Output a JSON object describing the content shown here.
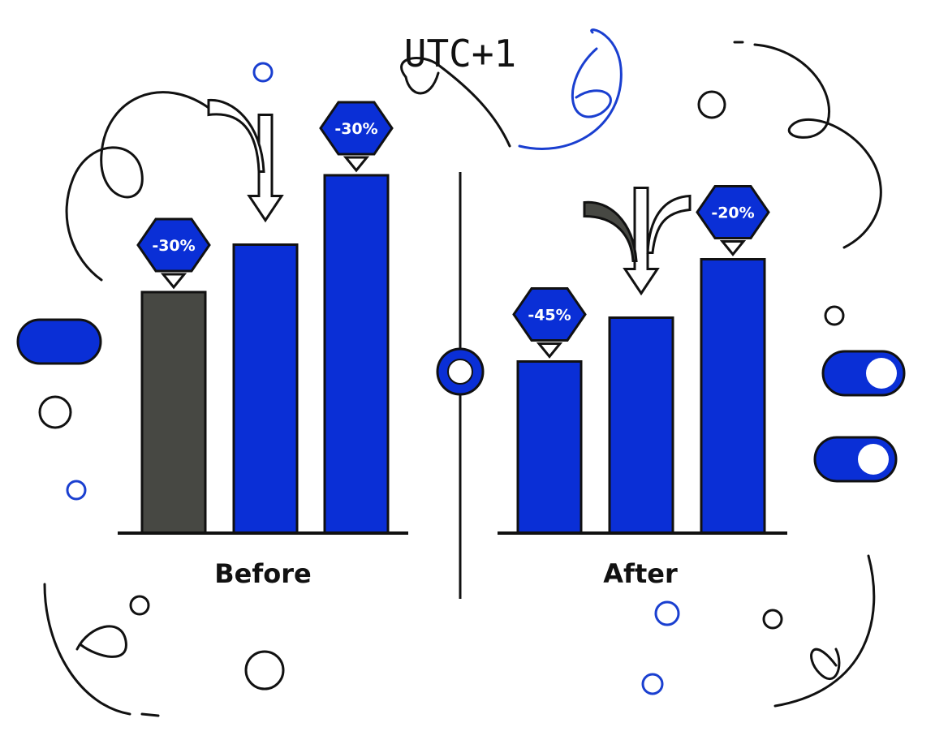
{
  "title": "UTC+1",
  "colors": {
    "blue": "#0a2fd6",
    "gray": "#474843",
    "outline": "#111111"
  },
  "chart_data": [
    {
      "type": "bar",
      "group_label": "Before",
      "ylim": [
        0,
        100
      ],
      "grid": false,
      "bars": [
        {
          "value": 66,
          "color": "#474843",
          "label": "-30%"
        },
        {
          "value": 79,
          "color": "#0a2fd6",
          "label": "",
          "arrow": true
        },
        {
          "value": 98,
          "color": "#0a2fd6",
          "label": "-30%"
        }
      ]
    },
    {
      "type": "bar",
      "group_label": "After",
      "ylim": [
        0,
        100
      ],
      "grid": false,
      "bars": [
        {
          "value": 47,
          "color": "#0a2fd6",
          "label": "-45%"
        },
        {
          "value": 59,
          "color": "#0a2fd6",
          "label": "",
          "arrow": true
        },
        {
          "value": 75,
          "color": "#0a2fd6",
          "label": "-20%"
        }
      ]
    }
  ],
  "decorations": {
    "divider_handle": "slider-handle",
    "toggles": [
      "toggle-off",
      "toggle-on",
      "toggle-on"
    ]
  }
}
